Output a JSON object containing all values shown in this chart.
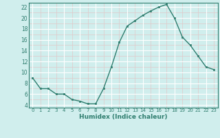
{
  "x": [
    0,
    1,
    2,
    3,
    4,
    5,
    6,
    7,
    8,
    9,
    10,
    11,
    12,
    13,
    14,
    15,
    16,
    17,
    18,
    19,
    20,
    21,
    22,
    23
  ],
  "y": [
    9,
    7,
    7,
    6,
    6,
    5,
    4.7,
    4.2,
    4.2,
    7,
    11,
    15.5,
    18.5,
    19.5,
    20.5,
    21.3,
    22.0,
    22.5,
    20,
    16.5,
    15,
    13,
    11,
    10.5
  ],
  "line_color": "#2e7d6e",
  "marker_color": "#2e7d6e",
  "bg_color": "#d0eeed",
  "grid_color_white": "#ffffff",
  "grid_color_pink": "#e0c8c8",
  "xlabel": "Humidex (Indice chaleur)",
  "ylim": [
    3.5,
    22.8
  ],
  "xlim": [
    -0.5,
    23.5
  ],
  "yticks": [
    4,
    6,
    8,
    10,
    12,
    14,
    16,
    18,
    20,
    22
  ],
  "xticks": [
    0,
    1,
    2,
    3,
    4,
    5,
    6,
    7,
    8,
    9,
    10,
    11,
    12,
    13,
    14,
    15,
    16,
    17,
    18,
    19,
    20,
    21,
    22,
    23
  ]
}
